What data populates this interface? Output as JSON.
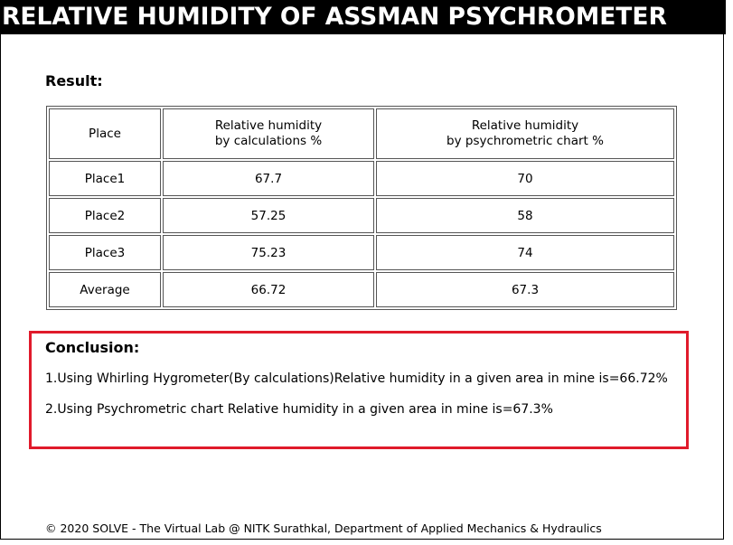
{
  "header": {
    "title": "RELATIVE HUMIDITY OF ASSMAN PSYCHROMETER"
  },
  "result": {
    "label": "Result:",
    "columns": [
      [
        "Place"
      ],
      [
        "Relative humidity",
        "by calculations %"
      ],
      [
        "Relative humidity",
        "by psychrometric chart %"
      ]
    ],
    "rows": [
      [
        "Place1",
        "67.7",
        "70"
      ],
      [
        "Place2",
        "57.25",
        "58"
      ],
      [
        "Place3",
        "75.23",
        "74"
      ],
      [
        "Average",
        "66.72",
        "67.3"
      ]
    ]
  },
  "conclusion": {
    "title": "Conclusion:",
    "lines": [
      "1.Using Whirling Hygrometer(By calculations)Relative humidity in a given area in mine is=66.72%",
      "2.Using Psychrometric chart Relative humidity in a given area in mine is=67.3%"
    ],
    "highlight_color": "#e01a2b"
  },
  "footer": {
    "text": "© 2020 SOLVE - The Virtual Lab @ NITK Surathkal, Department of Applied Mechanics & Hydraulics"
  }
}
